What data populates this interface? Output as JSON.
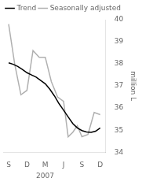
{
  "chart_data": {
    "type": "line",
    "y_label": "million L",
    "series": [
      {
        "name": "Trend",
        "color": "#000000",
        "x": [
          0,
          0.25,
          0.5,
          0.75,
          1.0,
          1.25,
          1.5,
          1.75,
          2.0,
          2.25,
          2.5,
          2.75,
          3.0,
          3.25,
          3.5,
          3.75,
          4.0,
          4.25,
          4.5,
          4.75,
          5.0
        ],
        "values": [
          38.05,
          37.98,
          37.88,
          37.75,
          37.6,
          37.5,
          37.4,
          37.25,
          37.1,
          36.85,
          36.55,
          36.2,
          35.9,
          35.6,
          35.3,
          35.1,
          34.98,
          34.92,
          34.9,
          34.95,
          35.1
        ]
      },
      {
        "name": "Seasonally adjusted",
        "color": "#b0b0b0",
        "x": [
          0,
          0.33,
          0.67,
          1.0,
          1.33,
          1.67,
          2.0,
          2.33,
          2.67,
          3.0,
          3.25,
          3.5,
          3.75,
          4.0,
          4.33,
          4.67,
          5.0
        ],
        "values": [
          39.8,
          38.0,
          36.6,
          36.8,
          38.6,
          38.3,
          38.3,
          37.2,
          36.5,
          36.3,
          34.7,
          34.9,
          35.2,
          34.7,
          34.8,
          35.8,
          35.7
        ]
      }
    ],
    "xlim": [
      -0.3,
      5.3
    ],
    "xticks": [
      {
        "value": 0,
        "label": "S"
      },
      {
        "value": 1,
        "label": "D"
      },
      {
        "value": 2,
        "label": "M"
      },
      {
        "value": 3,
        "label": "J"
      },
      {
        "value": 4,
        "label": "S"
      },
      {
        "value": 5,
        "label": "D"
      }
    ],
    "ylim": [
      34,
      40
    ],
    "yticks": [
      34,
      35,
      36,
      37,
      38,
      39,
      40
    ],
    "annotations": [
      {
        "text": "2007",
        "x": 1.5
      }
    ],
    "grid": false,
    "legend": "top"
  }
}
